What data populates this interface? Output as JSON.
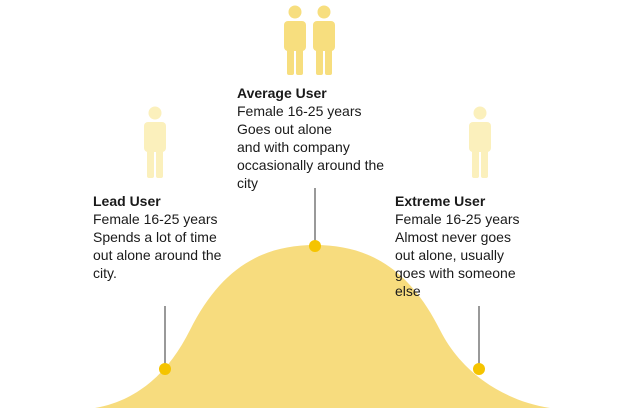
{
  "colors": {
    "curve": "#f7dc7e",
    "dot": "#f5c400",
    "connector": "#555555",
    "figure_light": "#fbf0bc",
    "figure_strong": "#f7de7e"
  },
  "users": {
    "lead": {
      "title": "Lead User",
      "lines": [
        "Female 16-25 years",
        "Spends a lot of time",
        "out alone around the",
        "city."
      ],
      "figure_count": 1,
      "figure_tone": "light"
    },
    "average": {
      "title": "Average User",
      "lines": [
        "Female 16-25 years",
        "Goes out alone",
        "and with company",
        "occasionally around the",
        "city"
      ],
      "figure_count": 2,
      "figure_tone": "strong"
    },
    "extreme": {
      "title": "Extreme User",
      "lines": [
        "Female 16-25 years",
        "Almost never goes",
        "out alone, usually",
        "goes with someone",
        "else"
      ],
      "figure_count": 1,
      "figure_tone": "light"
    }
  }
}
